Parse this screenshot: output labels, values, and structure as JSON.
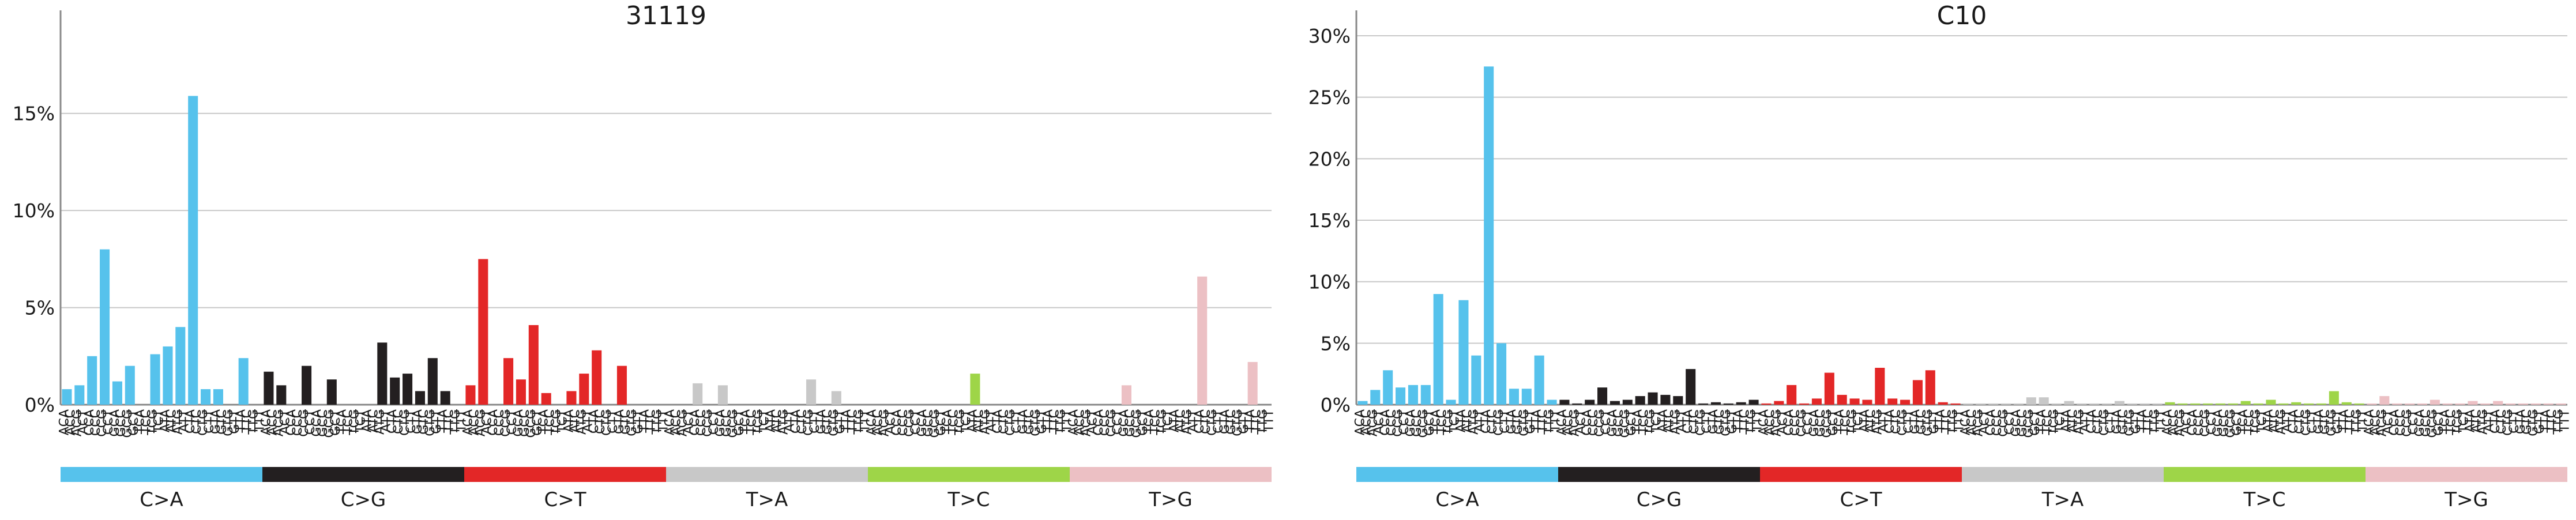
{
  "contexts": [
    "ACA",
    "ACC",
    "ACG",
    "ACT",
    "CCA",
    "CCC",
    "CCG",
    "CCT",
    "GCA",
    "GCC",
    "GCG",
    "GCT",
    "TCA",
    "TCC",
    "TCG",
    "TCT",
    "ATA",
    "ATC",
    "ATG",
    "ATT",
    "CTA",
    "CTC",
    "CTG",
    "CTT",
    "GTA",
    "GTC",
    "GTG",
    "GTT",
    "TTA",
    "TTC",
    "TTG",
    "TTT"
  ],
  "mutation_types": [
    {
      "label": "C>A",
      "color": "#56C2EC"
    },
    {
      "label": "C>G",
      "color": "#231F20"
    },
    {
      "label": "C>T",
      "color": "#E32727"
    },
    {
      "label": "T>A",
      "color": "#C8C8C8"
    },
    {
      "label": "T>C",
      "color": "#9ED548"
    },
    {
      "label": "T>G",
      "color": "#ECC0C4"
    }
  ],
  "chart_data": [
    {
      "type": "bar",
      "title": "31119",
      "ylim": [
        0,
        19
      ],
      "yticks": [
        0,
        5,
        10,
        15
      ],
      "ytick_labels": [
        "0%",
        "5%",
        "10%",
        "15%"
      ],
      "grid": true,
      "series": [
        {
          "values": [
            0.8,
            1.0,
            2.5,
            8.0,
            1.2,
            2.0,
            0,
            2.6,
            3.0,
            4.0,
            15.9,
            0.8,
            0.8,
            0,
            2.4,
            0
          ]
        },
        {
          "values": [
            1.7,
            1.0,
            0,
            2.0,
            0,
            1.3,
            0,
            0,
            0,
            3.2,
            1.4,
            1.6,
            0.7,
            2.4,
            0.7,
            0
          ]
        },
        {
          "values": [
            1.0,
            7.5,
            0,
            2.4,
            1.3,
            4.1,
            0.6,
            0,
            0.7,
            1.6,
            2.8,
            0,
            2.0,
            0,
            0,
            0
          ]
        },
        {
          "values": [
            0,
            0,
            1.1,
            0,
            1.0,
            0,
            0,
            0,
            0,
            0,
            0,
            1.3,
            0,
            0.7,
            0,
            0
          ]
        },
        {
          "values": [
            0,
            0,
            0,
            0,
            0,
            0,
            0,
            0,
            1.6,
            0,
            0,
            0,
            0,
            0,
            0,
            0
          ]
        },
        {
          "values": [
            0,
            0,
            0,
            0,
            1.0,
            0,
            0,
            0,
            0,
            0,
            6.6,
            0,
            0,
            0,
            2.2,
            0
          ]
        }
      ]
    },
    {
      "type": "bar",
      "title": "C10",
      "ylim": [
        0,
        30
      ],
      "yticks": [
        0,
        5,
        10,
        15,
        20,
        25,
        30
      ],
      "ytick_labels": [
        "0%",
        "5%",
        "10%",
        "15%",
        "20%",
        "25%",
        "30%"
      ],
      "grid": true,
      "series": [
        {
          "values": [
            0.3,
            1.2,
            2.8,
            1.4,
            1.6,
            1.6,
            9.0,
            0.4,
            8.5,
            4.0,
            27.5,
            5.0,
            1.3,
            1.3,
            4.0,
            0.4
          ]
        },
        {
          "values": [
            0.4,
            0.1,
            0.4,
            1.4,
            0.3,
            0.4,
            0.7,
            1.0,
            0.8,
            0.7,
            2.9,
            0.1,
            0.2,
            0.1,
            0.2,
            0.4
          ]
        },
        {
          "values": [
            0.1,
            0.3,
            1.6,
            0.1,
            0.5,
            2.6,
            0.8,
            0.5,
            0.4,
            3.0,
            0.5,
            0.4,
            2.0,
            2.8,
            0.2,
            0.1
          ]
        },
        {
          "values": [
            0.1,
            0.1,
            0.1,
            0.1,
            0.1,
            0.6,
            0.6,
            0.1,
            0.3,
            0.1,
            0.1,
            0.1,
            0.3,
            0.1,
            0.1,
            0.1
          ]
        },
        {
          "values": [
            0.2,
            0.1,
            0.1,
            0.1,
            0.1,
            0.1,
            0.3,
            0.1,
            0.4,
            0.1,
            0.2,
            0.1,
            0.1,
            1.1,
            0.2,
            0.1
          ]
        },
        {
          "values": [
            0.1,
            0.7,
            0.1,
            0.1,
            0.1,
            0.4,
            0.1,
            0.1,
            0.3,
            0.1,
            0.3,
            0.1,
            0.1,
            0.1,
            0.1,
            0.1
          ]
        }
      ]
    }
  ]
}
